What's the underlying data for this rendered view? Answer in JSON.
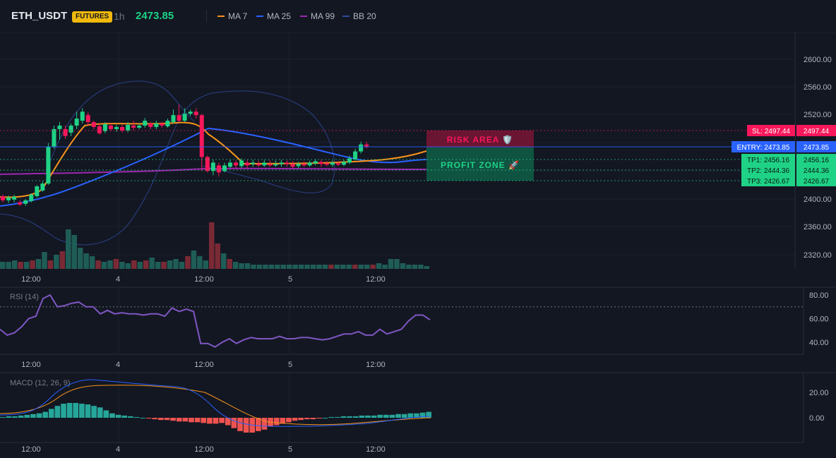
{
  "header": {
    "symbol": "ETH_USDT",
    "badge": "FUTURES",
    "timeframe": "1h",
    "last_price": "2473.85",
    "legend": [
      {
        "label": "MA 7",
        "color": "#f7931a"
      },
      {
        "label": "MA 25",
        "color": "#2962ff"
      },
      {
        "label": "MA 99",
        "color": "#9c27b0"
      },
      {
        "label": "BB 20",
        "color": "#2f4ba0"
      }
    ]
  },
  "colors": {
    "background": "#131722",
    "up": "#26a69a",
    "up_bright": "#1fd286",
    "down": "#f23645",
    "grid": "#1e222d",
    "axis_text": "#b2b5be"
  },
  "main_panel": {
    "price_axis": {
      "ticks": [
        "2600.00",
        "2560.00",
        "2520.00",
        "2400.00",
        "2360.00",
        "2320.00"
      ],
      "range": [
        2300,
        2620
      ]
    },
    "time_axis": [
      "12:00",
      "4",
      "12:00",
      "5",
      "12:00"
    ],
    "zones": {
      "risk_label": "RISK AREA 🛡️",
      "profit_label": "PROFIT ZONE 🚀"
    },
    "levels": [
      {
        "tag": "SL: 2497.44",
        "value": "2497.44",
        "price": 2497.44,
        "color": "#f7175a"
      },
      {
        "tag": "ENTRY: 2473.85",
        "value": "2473.85",
        "price": 2473.85,
        "color": "#2962ff"
      },
      {
        "tag": "TP1: 2456.16",
        "value": "2456.16",
        "price": 2456.16,
        "color": "#1fd286"
      },
      {
        "tag": "TP2: 2444.36",
        "value": "2444.36",
        "price": 2444.36,
        "color": "#1fd286"
      },
      {
        "tag": "TP3: 2426.67",
        "value": "2426.67",
        "price": 2426.67,
        "color": "#1fd286"
      }
    ]
  },
  "rsi_panel": {
    "title": "RSI (14)",
    "ticks": [
      "80.00",
      "60.00",
      "40.00"
    ],
    "overbought": 70,
    "time_axis": [
      "12:00",
      "4",
      "12:00",
      "5",
      "12:00"
    ],
    "line_color": "#7e57c2",
    "values": [
      51,
      46,
      48,
      53,
      60,
      62,
      77,
      80,
      70,
      71,
      73,
      74,
      70,
      70,
      64,
      67,
      64,
      65,
      64,
      64,
      63,
      64,
      64,
      62,
      69,
      66,
      68,
      66,
      39,
      39,
      36,
      40,
      43,
      39,
      42,
      44,
      43,
      43,
      43,
      45,
      43,
      43,
      44,
      44,
      43,
      42,
      43,
      45,
      47,
      47,
      49,
      46,
      46,
      51,
      47,
      49,
      51,
      58,
      63,
      63,
      59
    ]
  },
  "macd_panel": {
    "title": "MACD (12, 26, 9)",
    "ticks": [
      "20.00",
      "0.00"
    ],
    "time_axis": [
      "12:00",
      "4",
      "12:00",
      "5",
      "12:00"
    ],
    "macd_color": "#2962ff",
    "signal_color": "#f7931a"
  }
}
